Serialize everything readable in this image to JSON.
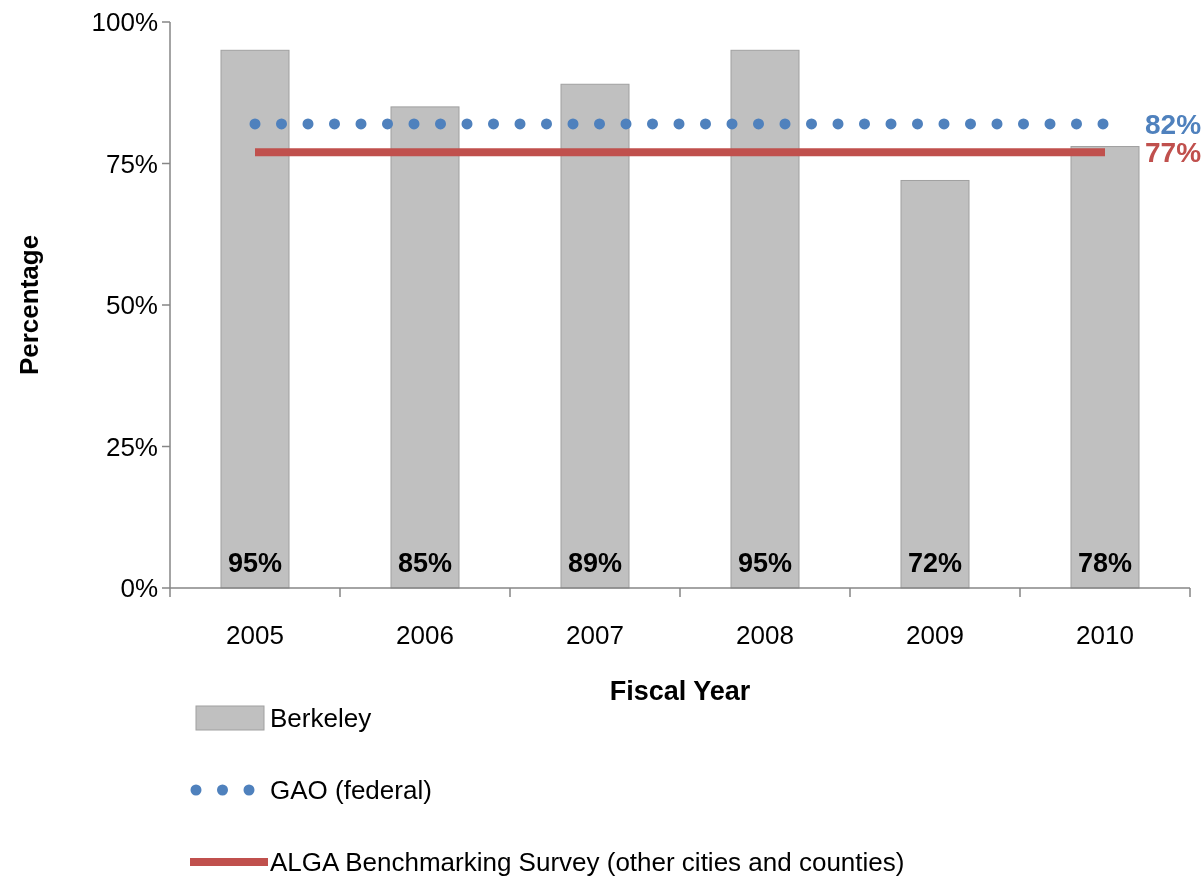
{
  "chart_data": {
    "type": "bar",
    "xlabel": "Fiscal Year",
    "ylabel": "Percentage",
    "categories": [
      "2005",
      "2006",
      "2007",
      "2008",
      "2009",
      "2010"
    ],
    "ylim": [
      0,
      100
    ],
    "yticks": [
      {
        "value": 0,
        "label": "0%"
      },
      {
        "value": 25,
        "label": "25%"
      },
      {
        "value": 50,
        "label": "50%"
      },
      {
        "value": 75,
        "label": "75%"
      },
      {
        "value": 100,
        "label": "100%"
      }
    ],
    "grid": false,
    "legend": "bottom",
    "series": [
      {
        "name": "Berkeley",
        "color": "#c0c0c0",
        "values": [
          95,
          85,
          89,
          95,
          72,
          78
        ],
        "value_labels": [
          "95%",
          "85%",
          "89%",
          "95%",
          "72%",
          "78%"
        ]
      },
      {
        "name": "GAO (federal)",
        "type": "line",
        "color": "#4f81bd",
        "line_style": "dotted",
        "values": [
          82,
          82,
          82,
          82,
          82,
          82
        ],
        "value_labels": [
          null,
          null,
          null,
          null,
          null,
          "82%"
        ]
      },
      {
        "name": "ALGA Benchmarking Survey (other cities and counties)",
        "type": "line",
        "color": "#c0504d",
        "line_style": "solid",
        "values": [
          77,
          77,
          77,
          77,
          77,
          77
        ],
        "value_labels": [
          null,
          null,
          null,
          null,
          null,
          "77%"
        ]
      }
    ]
  }
}
